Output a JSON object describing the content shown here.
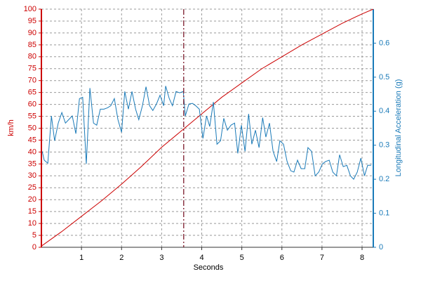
{
  "chart_data": {
    "type": "line",
    "x_label": "Seconds",
    "y_label": "km/h",
    "y2_label": "Longitudinal Acceleration (g)",
    "xlim": [
      0,
      8.28
    ],
    "xticks": [
      1,
      2,
      3,
      4,
      5,
      6,
      7,
      8
    ],
    "ylim": [
      0,
      100
    ],
    "yticks": [
      0,
      5,
      10,
      15,
      20,
      25,
      30,
      35,
      40,
      45,
      50,
      55,
      60,
      65,
      70,
      75,
      80,
      85,
      90,
      95,
      100
    ],
    "y2lim": [
      0,
      0.7
    ],
    "y2ticks": [
      0,
      0.1,
      0.2,
      0.3,
      0.4,
      0.5,
      0.6
    ],
    "grid": true,
    "cursor_x": 3.55,
    "series": [
      {
        "color": "#cc0000",
        "axis": "y",
        "x": [
          0,
          0.5,
          1,
          1.5,
          2,
          2.5,
          3,
          3.5,
          4,
          4.5,
          5,
          5.5,
          6,
          6.5,
          7,
          7.5,
          8,
          8.28
        ],
        "values": [
          0.5,
          6.5,
          13,
          19.5,
          26.5,
          34,
          42,
          49,
          56,
          63,
          69,
          75,
          80,
          85,
          89.5,
          94,
          98,
          100
        ]
      },
      {
        "color": "#1a7ab8",
        "axis": "y2",
        "x": [
          0.02,
          0.07,
          0.16,
          0.25,
          0.33,
          0.42,
          0.51,
          0.6,
          0.68,
          0.77,
          0.86,
          0.95,
          1.03,
          1.12,
          1.21,
          1.3,
          1.38,
          1.47,
          1.56,
          1.65,
          1.73,
          1.82,
          1.91,
          2.0,
          2.08,
          2.17,
          2.26,
          2.35,
          2.43,
          2.52,
          2.61,
          2.7,
          2.78,
          2.87,
          2.96,
          3.05,
          3.1,
          3.19,
          3.27,
          3.36,
          3.45,
          3.54,
          3.59,
          3.68,
          3.77,
          3.85,
          3.94,
          4.03,
          4.12,
          4.2,
          4.29,
          4.38,
          4.47,
          4.55,
          4.64,
          4.73,
          4.82,
          4.9,
          4.99,
          5.08,
          5.17,
          5.25,
          5.34,
          5.43,
          5.52,
          5.6,
          5.69,
          5.78,
          5.87,
          5.95,
          6.04,
          6.13,
          6.22,
          6.3,
          6.39,
          6.48,
          6.57,
          6.65,
          6.74,
          6.83,
          6.92,
          7.01,
          7.09,
          7.18,
          7.27,
          7.36,
          7.44,
          7.53,
          7.62,
          7.71,
          7.79,
          7.88,
          7.97,
          8.06,
          8.14,
          8.23
        ],
        "values": [
          0.282,
          0.256,
          0.247,
          0.386,
          0.313,
          0.365,
          0.396,
          0.365,
          0.375,
          0.386,
          0.334,
          0.437,
          0.441,
          0.245,
          0.468,
          0.365,
          0.359,
          0.406,
          0.406,
          0.41,
          0.416,
          0.437,
          0.375,
          0.338,
          0.458,
          0.406,
          0.458,
          0.406,
          0.375,
          0.416,
          0.472,
          0.416,
          0.402,
          0.421,
          0.447,
          0.416,
          0.474,
          0.437,
          0.416,
          0.458,
          0.454,
          0.458,
          0.386,
          0.421,
          0.423,
          0.416,
          0.406,
          0.32,
          0.386,
          0.355,
          0.427,
          0.303,
          0.313,
          0.379,
          0.344,
          0.359,
          0.365,
          0.276,
          0.359,
          0.282,
          0.392,
          0.303,
          0.344,
          0.293,
          0.381,
          0.324,
          0.365,
          0.282,
          0.252,
          0.313,
          0.303,
          0.252,
          0.225,
          0.221,
          0.256,
          0.231,
          0.231,
          0.293,
          0.282,
          0.21,
          0.221,
          0.245,
          0.252,
          0.256,
          0.221,
          0.21,
          0.272,
          0.237,
          0.241,
          0.21,
          0.2,
          0.221,
          0.262,
          0.21,
          0.241,
          0.241
        ]
      }
    ]
  }
}
